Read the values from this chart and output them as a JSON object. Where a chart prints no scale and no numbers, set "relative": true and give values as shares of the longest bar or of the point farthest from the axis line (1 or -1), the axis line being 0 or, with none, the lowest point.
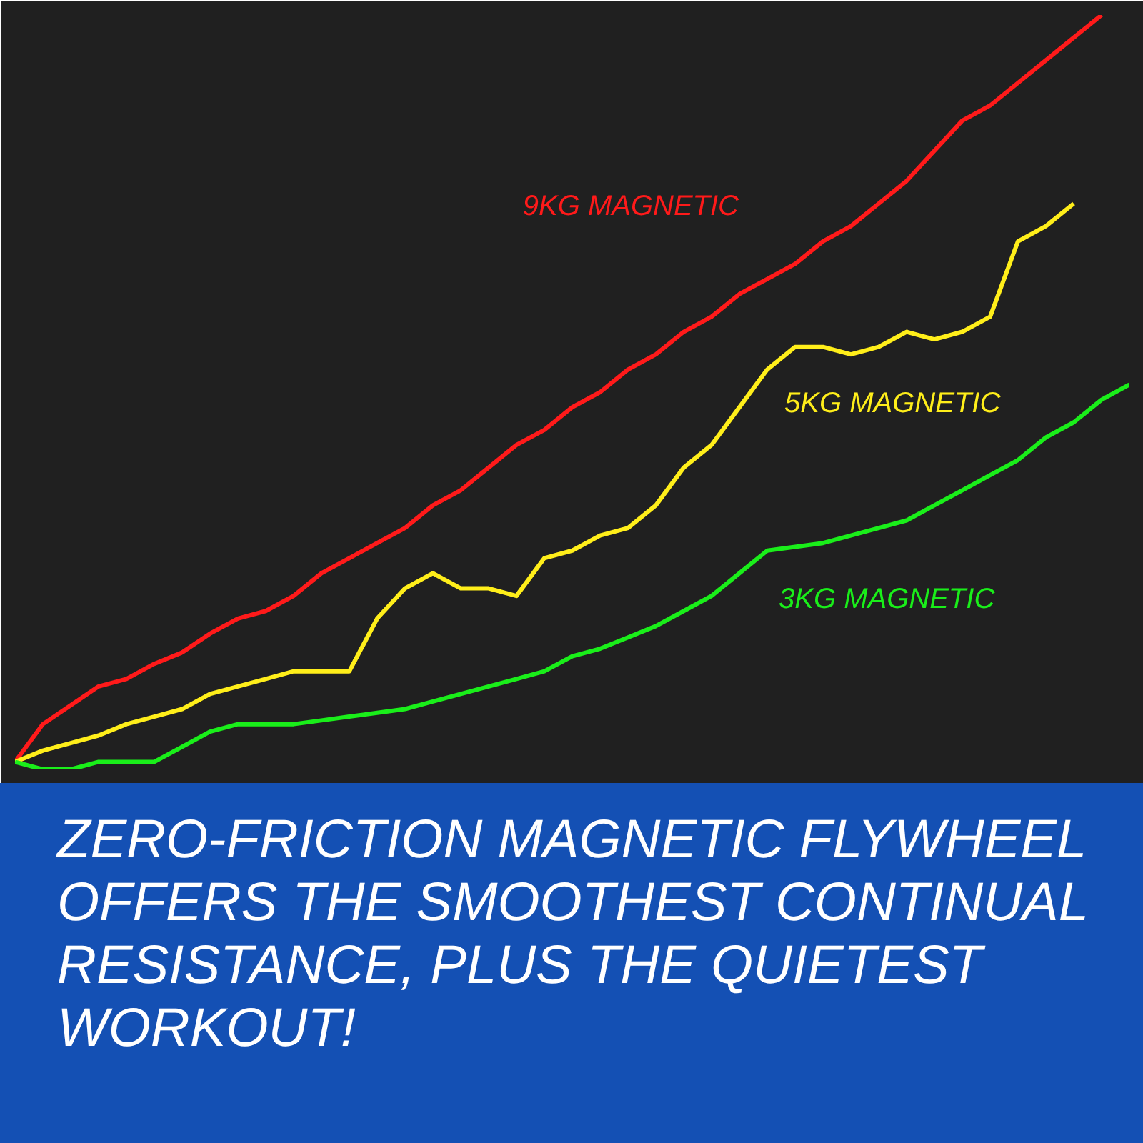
{
  "chart_data": {
    "type": "line",
    "relative": true,
    "line_style": "solid",
    "annotations": [
      "ZERO-FRICTION MAGNETIC FLYWHEEL OFFERS THE SMOOTHEST CONTINUAL RESISTANCE, PLUS THE QUIETEST WORKOUT!"
    ],
    "categories": [
      null,
      null,
      null,
      null,
      null,
      null,
      null,
      null,
      null,
      null,
      null,
      null,
      null,
      null,
      null,
      null,
      null,
      null,
      null,
      null,
      null,
      null,
      null,
      null,
      null,
      null,
      null,
      null,
      null,
      null,
      null,
      null,
      null,
      null,
      null,
      null,
      null,
      null,
      null,
      null,
      null
    ],
    "series": [
      {
        "name": "9KG MAGNETIC",
        "color": "#ff1a1a",
        "values": [
          0.01,
          0.06,
          0.085,
          0.11,
          0.12,
          0.14,
          0.155,
          0.18,
          0.2,
          0.21,
          0.23,
          0.26,
          0.28,
          0.3,
          0.32,
          0.35,
          0.37,
          0.4,
          0.43,
          0.45,
          0.48,
          0.5,
          0.53,
          0.55,
          0.58,
          0.6,
          0.63,
          0.65,
          0.67,
          0.7,
          0.72,
          0.75,
          0.78,
          0.82,
          0.86,
          0.88,
          0.91,
          0.94,
          0.97,
          1,
          null
        ]
      },
      {
        "name": "5KG MAGNETIC",
        "color": "#ffee1a",
        "values": [
          0.01,
          0.025,
          0.035,
          0.045,
          0.06,
          0.07,
          0.08,
          0.1,
          0.11,
          0.12,
          0.13,
          0.13,
          0.13,
          0.2,
          0.24,
          0.26,
          0.24,
          0.24,
          0.23,
          0.28,
          0.29,
          0.31,
          0.32,
          0.35,
          0.4,
          0.43,
          0.48,
          0.53,
          0.56,
          0.56,
          0.55,
          0.56,
          0.58,
          0.57,
          0.58,
          0.6,
          0.7,
          0.72,
          0.75,
          null,
          null
        ]
      },
      {
        "name": "3KG MAGNETIC",
        "color": "#1aee1a",
        "values": [
          0.01,
          0,
          0,
          0.01,
          0.01,
          0.01,
          0.03,
          0.05,
          0.06,
          0.06,
          0.06,
          0.065,
          0.07,
          0.075,
          0.08,
          0.09,
          0.1,
          0.11,
          0.12,
          0.13,
          0.15,
          0.16,
          0.175,
          0.19,
          0.21,
          0.23,
          0.26,
          0.29,
          0.295,
          0.3,
          0.31,
          0.32,
          0.33,
          0.35,
          0.37,
          0.39,
          0.41,
          0.44,
          0.46,
          0.49,
          0.51
        ]
      }
    ]
  }
}
